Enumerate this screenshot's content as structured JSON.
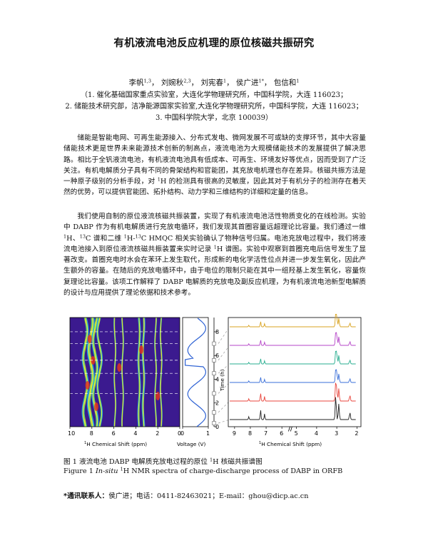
{
  "title": "有机液流电池反应机理的原位核磁共振研究",
  "authors": [
    {
      "name": "李帆",
      "sup": "1,3"
    },
    {
      "name": "刘婉秋",
      "sup": "2,3"
    },
    {
      "name": "刘宪春",
      "sup": "1"
    },
    {
      "name": "侯广进",
      "sup": "1*"
    },
    {
      "name": "包信和",
      "sup": "1"
    }
  ],
  "affiliations": [
    "（1. 催化基础国家重点实验室，大连化学物理研究所，中国科学院，大连 116023；",
    "2. 储能技术研究部，洁净能源国家实验室,大连化学物理研究所，中国科学院，大连 116023；",
    "3. 中国科学院大学，北京 100039）"
  ],
  "abstract": {
    "para1": "储能是智能电网、可再生能源接入、分布式发电、微网发展不可或缺的支撑环节，其中大容量储能技术更是世界未来能源技术创新的制高点，液流电池为大规模储能技术的发展提供了解决思路。相比于全钒液流电池，有机液流电池具有低成本、可再生、环境友好等优点，因而受到了广泛关注。有机电解质分子具有不同的骨架结构和官能团，其充放电机理也存在差异。核磁共振方法是一种原子级别的分析手段，对",
    "para1_nuc": "H",
    "para1_nuc_sup": "1",
    "para1_tail": "的检测具有很高的灵敏度，因此其对于有机分子的检测存在着天然的优势，可以提供官能团、拓扑结构、动力学和三维结构的详细和定量的信息。",
    "para2": "我们使用自制的原位液流核磁共振装置，实现了有机液流电池活性物质变化的在线检测。实验中 DABP 作为有机电解质进行充放电循环，我们发现其首圈容量远超理论比容量。我们通过一维 ",
    "para2_b": " 谱和二维 ",
    "para2_c": " HMQC 相关实验确认了物种信号归属。电池充放电过程中，我们将液流电池接入到原位液流核磁共振装置来实时记录 ",
    "para2_d": " 谱图。实验中观察到首圈充电后信号发生了显著改变。首圈充电时水会在苯环上发生取代，形成新的电化学活性位点并进一步发生氧化，因此产生额外的容量。在随后的充放电循环中，由于电位的限制只能在其中一组羟基上发生氧化，容量恢复理论比容量。该项工作解释了 DABP 电解质的充放电及副反应机理，为有机液流电池新型电解质的设计与应用提供了理论依据和技术参考。",
    "nuc_h": "H",
    "nuc_c": "C",
    "sup_1": "1",
    "sup_13": "13",
    "sep_comma": "、",
    "sep_dash": "-"
  },
  "figure": {
    "panel_a": {
      "xlabel_sup": "1",
      "xlabel": "H Chemical Shift (ppm)",
      "ticks": [
        "10",
        "8",
        "6",
        "4",
        "2",
        "0"
      ]
    },
    "panel_b": {
      "xlabel": "Voltage (V)",
      "ticks": [
        "0",
        "1"
      ]
    },
    "panel_c": {
      "ylabel": "Time (h)",
      "ticks": [
        "0",
        "2",
        "4",
        "6",
        "8"
      ]
    },
    "panel_d": {
      "xlabel_sup": "1",
      "xlabel": "H Chemical Shift (ppm)",
      "ticks_left": [
        "9",
        "8",
        "7",
        "6"
      ],
      "ticks_right": [
        "5",
        "4",
        "3",
        "2"
      ],
      "trace_colors": [
        "#222222",
        "#e8453c",
        "#3a6fd8",
        "#27ad8f",
        "#b545c8",
        "#d9a321"
      ]
    },
    "heatmap_colors": [
      "#3b1a8f",
      "#1f55d6",
      "#1fb5e8",
      "#3fe07a",
      "#e8e830",
      "#f29a1f",
      "#e5341d"
    ]
  },
  "caption_zh": {
    "prefix": "图 1 液流电池 DABP 电解质充放电过程的原位 ",
    "sup": "1",
    "nuc": "H",
    "suffix": " 核磁共振谱图"
  },
  "caption_en": {
    "prefix": "Figure 1 ",
    "italic": "In-situ",
    "sup": "1",
    "suffix": "H NMR spectra of charge-discharge process of DABP in ORFB"
  },
  "contact": {
    "label": "*通讯联系人：",
    "text": "侯广进；电话：0411-82463021；E-mail：ghou@dicp.ac.cn"
  }
}
